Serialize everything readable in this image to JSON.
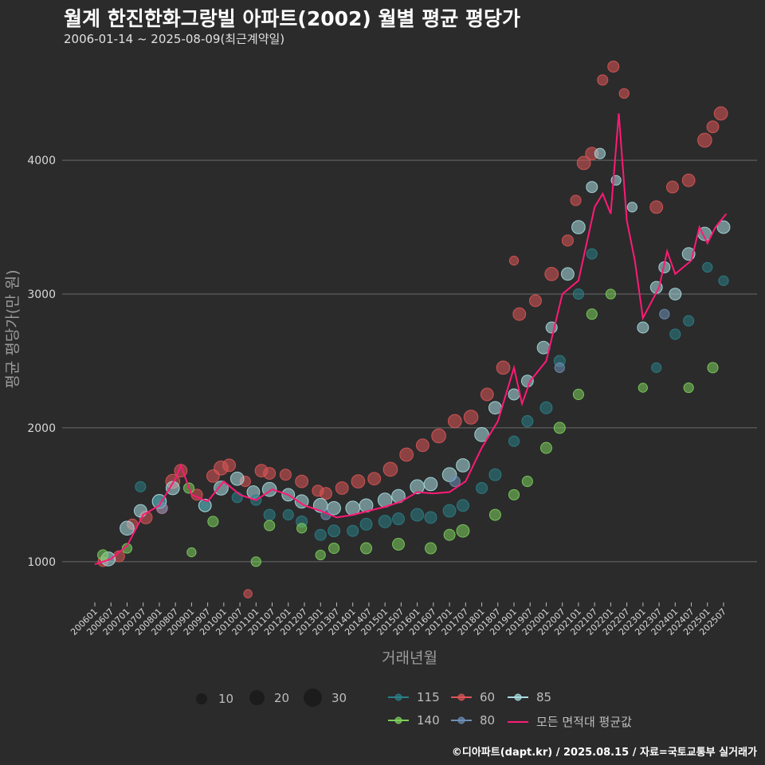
{
  "title": "월계 한진한화그랑빌 아파트(2002) 월별 평균 평당가",
  "subtitle": "2006-01-14 ~ 2025-08-09(최근계약일)",
  "footer": "©디아파트(dapt.kr) / 2025.08.15 / 자료=국토교통부 실거래가",
  "colors": {
    "background": "#2b2b2c",
    "grid": "#6a6a6a",
    "s115": "#2a7f86",
    "s140": "#7ccf5b",
    "s60": "#dd5555",
    "s80": "#6d8fb5",
    "s85": "#a9dde0",
    "avg": "#ff1a75"
  },
  "legend": {
    "size_items": [
      {
        "label": "10",
        "size": 10
      },
      {
        "label": "20",
        "size": 20
      },
      {
        "label": "30",
        "size": 30
      }
    ],
    "series_items": [
      {
        "label": "115",
        "color_key": "s115"
      },
      {
        "label": "60",
        "color_key": "s60"
      },
      {
        "label": "85",
        "color_key": "s85"
      },
      {
        "label": "140",
        "color_key": "s140"
      },
      {
        "label": "80",
        "color_key": "s80"
      },
      {
        "label": "모든 면적대 평균값",
        "color_key": "avg"
      }
    ]
  },
  "chart_data": {
    "type": "scatter",
    "xlabel": "거래년월",
    "ylabel": "평균 평당가(만 원)",
    "x_range": [
      "2006-01",
      "2025-08"
    ],
    "ylim": [
      600,
      4900
    ],
    "yticks": [
      1000,
      2000,
      3000,
      4000
    ],
    "xtick_labels": [
      "200601",
      "200607",
      "200701",
      "200707",
      "200801",
      "200807",
      "200901",
      "200907",
      "201001",
      "201007",
      "201101",
      "201107",
      "201201",
      "201207",
      "201301",
      "201307",
      "201401",
      "201407",
      "201501",
      "201507",
      "201601",
      "201607",
      "201701",
      "201707",
      "201801",
      "201807",
      "201901",
      "201907",
      "202001",
      "202007",
      "202101",
      "202107",
      "202201",
      "202207",
      "202301",
      "202307",
      "202401",
      "202407",
      "202501",
      "202507"
    ],
    "grid": "horizontal",
    "legend_position": "bottom",
    "series": [
      {
        "name": "60",
        "color_key": "s60",
        "points": [
          [
            "2006-04",
            1000,
            8
          ],
          [
            "2006-10",
            1040,
            10
          ],
          [
            "2007-03",
            1280,
            9
          ],
          [
            "2007-08",
            1330,
            12
          ],
          [
            "2008-02",
            1400,
            10
          ],
          [
            "2008-06",
            1600,
            14
          ],
          [
            "2008-09",
            1680,
            12
          ],
          [
            "2009-03",
            1500,
            10
          ],
          [
            "2009-09",
            1640,
            12
          ],
          [
            "2009-12",
            1700,
            14
          ],
          [
            "2010-03",
            1720,
            12
          ],
          [
            "2010-09",
            1600,
            9
          ],
          [
            "2011-03",
            1680,
            12
          ],
          [
            "2011-06",
            1660,
            11
          ],
          [
            "2011-12",
            1650,
            10
          ],
          [
            "2012-06",
            1600,
            12
          ],
          [
            "2012-12",
            1530,
            10
          ],
          [
            "2013-03",
            1510,
            11
          ],
          [
            "2013-09",
            1550,
            12
          ],
          [
            "2014-03",
            1600,
            13
          ],
          [
            "2014-09",
            1620,
            12
          ],
          [
            "2015-03",
            1690,
            14
          ],
          [
            "2015-09",
            1800,
            13
          ],
          [
            "2016-03",
            1870,
            12
          ],
          [
            "2016-09",
            1940,
            14
          ],
          [
            "2017-03",
            2050,
            13
          ],
          [
            "2017-09",
            2080,
            14
          ],
          [
            "2018-03",
            2250,
            12
          ],
          [
            "2018-09",
            2450,
            13
          ],
          [
            "2019-03",
            2850,
            12
          ],
          [
            "2019-09",
            2950,
            11
          ],
          [
            "2020-03",
            3150,
            13
          ],
          [
            "2020-09",
            3400,
            10
          ],
          [
            "2021-03",
            3980,
            13
          ],
          [
            "2021-06",
            4050,
            12
          ],
          [
            "2021-10",
            4600,
            9
          ],
          [
            "2022-02",
            4700,
            10
          ],
          [
            "2022-06",
            4500,
            8
          ],
          [
            "2023-06",
            3650,
            12
          ],
          [
            "2023-12",
            3800,
            11
          ],
          [
            "2024-06",
            3850,
            12
          ],
          [
            "2024-12",
            4150,
            14
          ],
          [
            "2025-03",
            4250,
            11
          ],
          [
            "2025-06",
            4350,
            13
          ],
          [
            "2010-10",
            760,
            6
          ],
          [
            "2019-01",
            3250,
            7
          ],
          [
            "2020-12",
            3700,
            9
          ]
        ]
      },
      {
        "name": "85",
        "color_key": "s85",
        "points": [
          [
            "2006-06",
            1020,
            14
          ],
          [
            "2007-01",
            1250,
            14
          ],
          [
            "2007-06",
            1380,
            12
          ],
          [
            "2008-01",
            1450,
            14
          ],
          [
            "2008-06",
            1550,
            13
          ],
          [
            "2009-06",
            1420,
            12
          ],
          [
            "2009-12",
            1550,
            14
          ],
          [
            "2010-06",
            1620,
            13
          ],
          [
            "2010-12",
            1520,
            12
          ],
          [
            "2011-06",
            1540,
            14
          ],
          [
            "2012-01",
            1500,
            12
          ],
          [
            "2012-06",
            1450,
            13
          ],
          [
            "2013-01",
            1420,
            14
          ],
          [
            "2013-06",
            1400,
            13
          ],
          [
            "2014-01",
            1400,
            14
          ],
          [
            "2014-06",
            1420,
            13
          ],
          [
            "2015-01",
            1460,
            14
          ],
          [
            "2015-06",
            1490,
            13
          ],
          [
            "2016-01",
            1560,
            14
          ],
          [
            "2016-06",
            1580,
            13
          ],
          [
            "2017-01",
            1650,
            14
          ],
          [
            "2017-06",
            1720,
            13
          ],
          [
            "2018-01",
            1950,
            14
          ],
          [
            "2018-06",
            2150,
            12
          ],
          [
            "2019-01",
            2250,
            10
          ],
          [
            "2019-06",
            2350,
            11
          ],
          [
            "2019-12",
            2600,
            12
          ],
          [
            "2020-03",
            2750,
            10
          ],
          [
            "2020-09",
            3150,
            12
          ],
          [
            "2021-01",
            3500,
            13
          ],
          [
            "2021-06",
            3800,
            10
          ],
          [
            "2021-09",
            4050,
            9
          ],
          [
            "2022-03",
            3850,
            8
          ],
          [
            "2022-09",
            3650,
            8
          ],
          [
            "2023-01",
            2750,
            10
          ],
          [
            "2023-06",
            3050,
            11
          ],
          [
            "2023-09",
            3200,
            10
          ],
          [
            "2024-01",
            3000,
            11
          ],
          [
            "2024-06",
            3300,
            12
          ],
          [
            "2024-12",
            3450,
            13
          ],
          [
            "2025-07",
            3500,
            12
          ]
        ]
      },
      {
        "name": "115",
        "color_key": "s115",
        "points": [
          [
            "2007-06",
            1560,
            9
          ],
          [
            "2008-01",
            1450,
            10
          ],
          [
            "2009-06",
            1420,
            8
          ],
          [
            "2010-06",
            1480,
            9
          ],
          [
            "2011-01",
            1460,
            9
          ],
          [
            "2011-06",
            1350,
            10
          ],
          [
            "2012-01",
            1350,
            9
          ],
          [
            "2012-06",
            1300,
            10
          ],
          [
            "2013-01",
            1200,
            10
          ],
          [
            "2013-06",
            1230,
            11
          ],
          [
            "2014-01",
            1230,
            10
          ],
          [
            "2014-06",
            1280,
            11
          ],
          [
            "2015-01",
            1300,
            12
          ],
          [
            "2015-06",
            1320,
            11
          ],
          [
            "2016-01",
            1350,
            12
          ],
          [
            "2016-06",
            1330,
            11
          ],
          [
            "2017-01",
            1380,
            12
          ],
          [
            "2017-06",
            1420,
            11
          ],
          [
            "2018-01",
            1550,
            10
          ],
          [
            "2018-06",
            1650,
            11
          ],
          [
            "2019-01",
            1900,
            9
          ],
          [
            "2019-06",
            2050,
            10
          ],
          [
            "2020-01",
            2150,
            11
          ],
          [
            "2020-06",
            2500,
            10
          ],
          [
            "2021-01",
            3000,
            9
          ],
          [
            "2021-06",
            3300,
            9
          ],
          [
            "2023-06",
            2450,
            8
          ],
          [
            "2024-01",
            2700,
            9
          ],
          [
            "2024-06",
            2800,
            9
          ],
          [
            "2025-01",
            3200,
            8
          ],
          [
            "2025-07",
            3100,
            8
          ]
        ]
      },
      {
        "name": "140",
        "color_key": "s140",
        "points": [
          [
            "2006-04",
            1050,
            9
          ],
          [
            "2007-01",
            1100,
            8
          ],
          [
            "2008-12",
            1550,
            9
          ],
          [
            "2009-01",
            1070,
            7
          ],
          [
            "2009-09",
            1300,
            9
          ],
          [
            "2011-01",
            1000,
            8
          ],
          [
            "2011-06",
            1270,
            9
          ],
          [
            "2012-06",
            1250,
            8
          ],
          [
            "2013-01",
            1050,
            8
          ],
          [
            "2013-06",
            1100,
            9
          ],
          [
            "2014-06",
            1100,
            10
          ],
          [
            "2015-06",
            1130,
            11
          ],
          [
            "2016-06",
            1100,
            10
          ],
          [
            "2017-01",
            1200,
            10
          ],
          [
            "2017-06",
            1230,
            12
          ],
          [
            "2018-06",
            1350,
            10
          ],
          [
            "2019-01",
            1500,
            9
          ],
          [
            "2019-06",
            1600,
            9
          ],
          [
            "2020-01",
            1850,
            10
          ],
          [
            "2020-06",
            2000,
            10
          ],
          [
            "2021-01",
            2250,
            9
          ],
          [
            "2021-06",
            2850,
            9
          ],
          [
            "2022-01",
            3000,
            8
          ],
          [
            "2023-01",
            2300,
            7
          ],
          [
            "2024-06",
            2300,
            8
          ],
          [
            "2025-03",
            2450,
            9
          ]
        ]
      },
      {
        "name": "80",
        "color_key": "s80",
        "points": [
          [
            "2008-02",
            1400,
            9
          ],
          [
            "2013-03",
            1350,
            8
          ],
          [
            "2017-03",
            1600,
            9
          ],
          [
            "2020-06",
            2450,
            8
          ],
          [
            "2023-09",
            2850,
            8
          ]
        ]
      },
      {
        "name": "모든 면적대 평균값",
        "color_key": "avg",
        "line": [
          [
            "2006-01",
            980
          ],
          [
            "2006-07",
            1020
          ],
          [
            "2007-01",
            1120
          ],
          [
            "2007-07",
            1350
          ],
          [
            "2008-01",
            1420
          ],
          [
            "2008-07",
            1620
          ],
          [
            "2008-09",
            1720
          ],
          [
            "2009-01",
            1500
          ],
          [
            "2009-07",
            1450
          ],
          [
            "2010-01",
            1600
          ],
          [
            "2010-07",
            1500
          ],
          [
            "2011-01",
            1460
          ],
          [
            "2011-07",
            1540
          ],
          [
            "2012-01",
            1500
          ],
          [
            "2012-07",
            1420
          ],
          [
            "2013-01",
            1380
          ],
          [
            "2013-07",
            1330
          ],
          [
            "2014-01",
            1350
          ],
          [
            "2014-07",
            1380
          ],
          [
            "2015-01",
            1410
          ],
          [
            "2015-07",
            1450
          ],
          [
            "2016-01",
            1520
          ],
          [
            "2016-07",
            1510
          ],
          [
            "2017-01",
            1520
          ],
          [
            "2017-07",
            1600
          ],
          [
            "2018-01",
            1850
          ],
          [
            "2018-07",
            2050
          ],
          [
            "2019-01",
            2450
          ],
          [
            "2019-04",
            2180
          ],
          [
            "2019-07",
            2350
          ],
          [
            "2020-01",
            2500
          ],
          [
            "2020-07",
            3000
          ],
          [
            "2021-01",
            3100
          ],
          [
            "2021-07",
            3650
          ],
          [
            "2021-10",
            3750
          ],
          [
            "2022-01",
            3600
          ],
          [
            "2022-04",
            4350
          ],
          [
            "2022-07",
            3550
          ],
          [
            "2022-10",
            3250
          ],
          [
            "2023-01",
            2820
          ],
          [
            "2023-07",
            3050
          ],
          [
            "2023-10",
            3320
          ],
          [
            "2024-01",
            3150
          ],
          [
            "2024-07",
            3250
          ],
          [
            "2024-10",
            3500
          ],
          [
            "2025-01",
            3380
          ],
          [
            "2025-04",
            3500
          ],
          [
            "2025-08",
            3600
          ]
        ]
      }
    ]
  }
}
